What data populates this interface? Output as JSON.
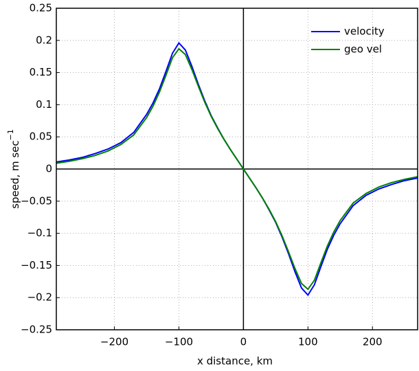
{
  "chart_data": {
    "type": "line",
    "xlabel": "x distance, km",
    "ylabel": "speed, m sec",
    "ylabel_sup": "−1",
    "x": [
      -290,
      -270,
      -250,
      -230,
      -210,
      -190,
      -170,
      -150,
      -140,
      -130,
      -120,
      -110,
      -100,
      -90,
      -80,
      -70,
      -60,
      -50,
      -40,
      -30,
      -20,
      -10,
      0,
      10,
      20,
      30,
      40,
      50,
      60,
      70,
      80,
      90,
      100,
      110,
      120,
      130,
      140,
      150,
      170,
      190,
      210,
      230,
      250,
      270
    ],
    "series": [
      {
        "name": "velocity",
        "color": "#0000ff",
        "values": [
          0.011,
          0.014,
          0.018,
          0.024,
          0.031,
          0.041,
          0.057,
          0.085,
          0.103,
          0.125,
          0.152,
          0.18,
          0.196,
          0.185,
          0.16,
          0.132,
          0.106,
          0.083,
          0.064,
          0.046,
          0.03,
          0.015,
          0,
          -0.015,
          -0.03,
          -0.046,
          -0.064,
          -0.083,
          -0.106,
          -0.132,
          -0.16,
          -0.185,
          -0.196,
          -0.18,
          -0.152,
          -0.125,
          -0.103,
          -0.085,
          -0.057,
          -0.041,
          -0.031,
          -0.024,
          -0.018,
          -0.014
        ]
      },
      {
        "name": "geo vel",
        "color": "#008000",
        "values": [
          0.009,
          0.012,
          0.016,
          0.021,
          0.028,
          0.038,
          0.053,
          0.08,
          0.098,
          0.12,
          0.146,
          0.173,
          0.187,
          0.178,
          0.155,
          0.129,
          0.104,
          0.082,
          0.063,
          0.046,
          0.03,
          0.015,
          0,
          -0.015,
          -0.03,
          -0.046,
          -0.063,
          -0.082,
          -0.104,
          -0.129,
          -0.155,
          -0.178,
          -0.187,
          -0.173,
          -0.146,
          -0.12,
          -0.098,
          -0.08,
          -0.053,
          -0.038,
          -0.028,
          -0.021,
          -0.016,
          -0.012
        ]
      }
    ],
    "xlim": [
      -290,
      270
    ],
    "ylim": [
      -0.25,
      0.25
    ],
    "xticks": [
      {
        "value": -200,
        "label": "−200"
      },
      {
        "value": -100,
        "label": "−100"
      },
      0,
      100,
      200
    ],
    "yticks": [
      {
        "value": -0.25,
        "label": "−0.25"
      },
      {
        "value": -0.2,
        "label": "−0.2"
      },
      {
        "value": -0.15,
        "label": "−0.15"
      },
      {
        "value": -0.1,
        "label": "−0.1"
      },
      {
        "value": -0.05,
        "label": "−0.05"
      },
      0,
      0.05,
      0.1,
      0.15,
      0.2,
      0.25
    ],
    "grid": true,
    "legend": "top-right"
  }
}
